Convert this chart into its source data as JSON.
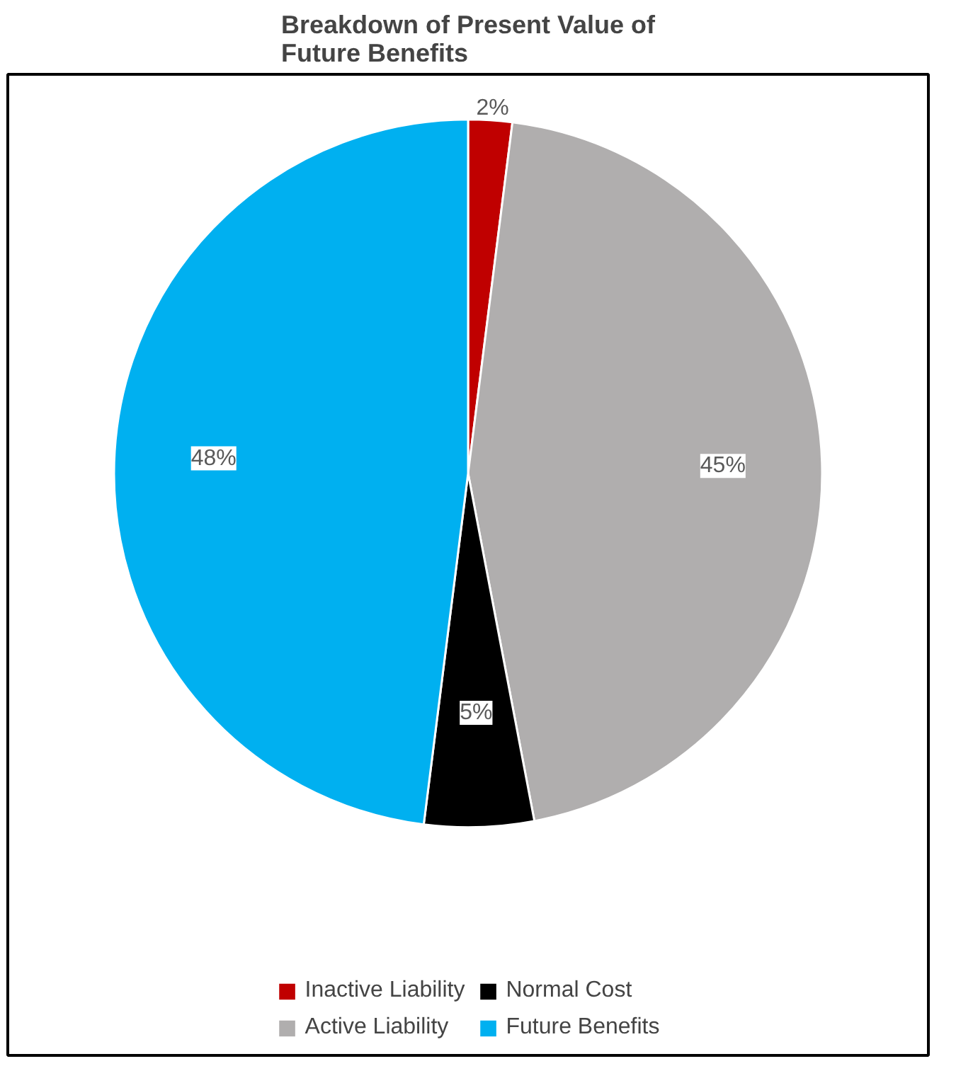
{
  "chart_data": {
    "type": "pie",
    "title": "Breakdown of Present Value of\nFuture Benefits",
    "categories": [
      "Inactive Liability",
      "Active Liability",
      "Normal Cost",
      "Future Benefits"
    ],
    "values": [
      2,
      45,
      5,
      48
    ],
    "colors": [
      "#c00000",
      "#b0aeae",
      "#000000",
      "#00b0f0"
    ],
    "value_labels": [
      "2%",
      "45%",
      "5%",
      "48%"
    ],
    "legend": "bottom"
  }
}
